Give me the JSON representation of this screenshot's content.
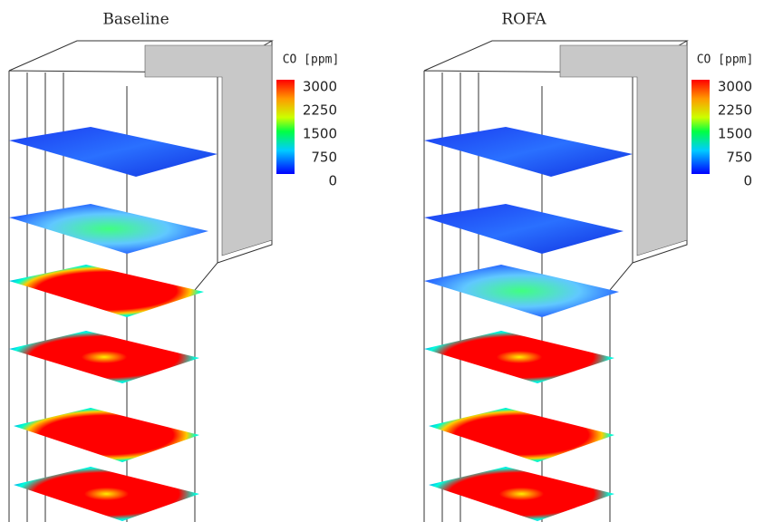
{
  "panels": [
    {
      "title": "Baseline",
      "colorbar": {
        "label": "CO [ppm]",
        "ticks": [
          3000,
          2250,
          1500,
          750,
          0
        ]
      }
    },
    {
      "title": "ROFA",
      "colorbar": {
        "label": "CO [ppm]",
        "ticks": [
          3000,
          2250,
          1500,
          750,
          0
        ]
      }
    }
  ]
}
